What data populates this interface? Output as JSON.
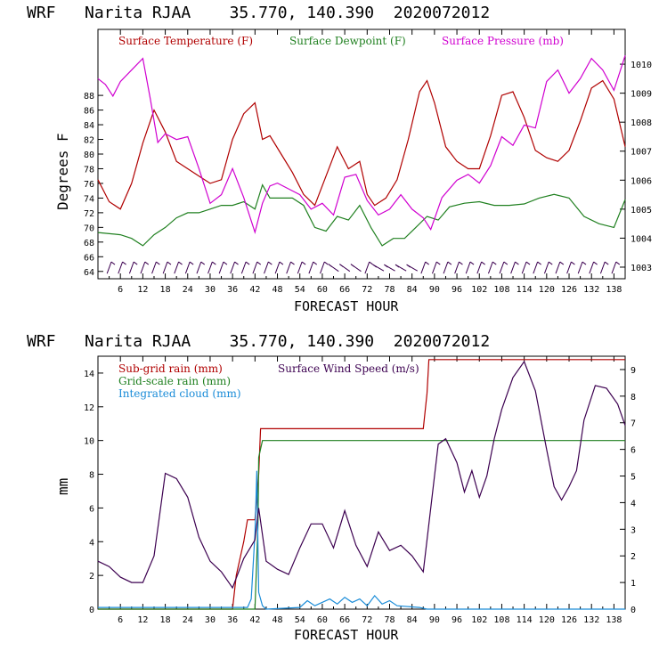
{
  "chart_data": [
    {
      "type": "line",
      "title": "WRF   Narita RJAA    35.770, 140.390  2020072012",
      "xlabel": "FORECAST HOUR",
      "ylabel": "Degrees F",
      "xlim": [
        0,
        141
      ],
      "ylim": [
        63,
        97
      ],
      "y2lim": [
        1002.6,
        1011.2
      ],
      "xticks": [
        "6",
        "12",
        "18",
        "24",
        "30",
        "36",
        "42",
        "48",
        "54",
        "60",
        "66",
        "72",
        "78",
        "84",
        "90",
        "96",
        "102",
        "108",
        "114",
        "120",
        "126",
        "132",
        "138"
      ],
      "yticks": [
        "64",
        "66",
        "68",
        "70",
        "72",
        "74",
        "76",
        "78",
        "80",
        "82",
        "84",
        "86",
        "88"
      ],
      "y2ticks": [
        "1003",
        "1004",
        "1005",
        "1006",
        "1007",
        "1008",
        "1009",
        "1010"
      ],
      "series": [
        {
          "name": "Surface Temperature (F)",
          "color": "#b00000",
          "axis": "left",
          "x": [
            0,
            3,
            6,
            9,
            12,
            15,
            18,
            21,
            24,
            27,
            30,
            33,
            36,
            39,
            42,
            44,
            46,
            49,
            52,
            55,
            58,
            61,
            64,
            67,
            70,
            72,
            74,
            77,
            80,
            83,
            86,
            88,
            90,
            93,
            96,
            99,
            102,
            105,
            108,
            111,
            114,
            117,
            120,
            123,
            126,
            129,
            132,
            135,
            138,
            141
          ],
          "y": [
            76.5,
            73.5,
            72.5,
            76,
            81.5,
            86,
            83,
            79,
            78,
            77,
            76,
            76.5,
            82,
            85.5,
            87,
            82,
            82.5,
            80,
            77.5,
            74.5,
            73,
            77,
            81,
            78,
            79,
            74.5,
            73,
            74,
            76.5,
            82,
            88.5,
            90,
            87,
            81,
            79,
            78,
            78,
            82.5,
            88,
            88.5,
            85,
            80.5,
            79.5,
            79,
            80.5,
            84.5,
            89,
            90,
            87.5,
            81
          ]
        },
        {
          "name": "Surface Dewpoint (F)",
          "color": "#208020",
          "axis": "left",
          "x": [
            0,
            6,
            9,
            12,
            15,
            18,
            21,
            24,
            27,
            30,
            33,
            36,
            39,
            42,
            44,
            46,
            49,
            52,
            55,
            58,
            61,
            64,
            67,
            70,
            73,
            76,
            79,
            82,
            85,
            88,
            91,
            94,
            98,
            102,
            106,
            110,
            114,
            118,
            122,
            126,
            130,
            134,
            138,
            141
          ],
          "y": [
            69.3,
            69,
            68.5,
            67.5,
            69,
            70,
            71.3,
            72,
            72,
            72.5,
            73,
            73,
            73.5,
            72.5,
            75.8,
            74,
            74,
            74,
            73,
            70,
            69.5,
            71.5,
            71,
            73,
            70,
            67.5,
            68.5,
            68.5,
            70,
            71.5,
            71,
            72.8,
            73.3,
            73.5,
            73,
            73,
            73.2,
            74,
            74.5,
            74,
            71.5,
            70.5,
            70,
            73.8
          ]
        },
        {
          "name": "Surface Pressure (mb)",
          "color": "#d000d0",
          "axis": "right",
          "x": [
            0,
            2,
            4,
            6,
            9,
            12,
            14,
            16,
            18,
            21,
            24,
            27,
            30,
            33,
            36,
            39,
            41,
            42,
            44,
            46,
            48,
            51,
            54,
            57,
            60,
            63,
            66,
            69,
            72,
            75,
            78,
            81,
            84,
            87,
            89,
            92,
            96,
            99,
            102,
            105,
            108,
            111,
            114,
            117,
            120,
            123,
            126,
            129,
            132,
            135,
            138,
            141
          ],
          "y": [
            1009.5,
            1009.3,
            1008.9,
            1009.4,
            1009.8,
            1010.2,
            1008.8,
            1007.3,
            1007.6,
            1007.4,
            1007.5,
            1006.4,
            1005.2,
            1005.5,
            1006.4,
            1005.4,
            1004.6,
            1004.2,
            1005.2,
            1005.8,
            1005.9,
            1005.7,
            1005.5,
            1005,
            1005.2,
            1004.8,
            1006.1,
            1006.2,
            1005.3,
            1004.8,
            1005,
            1005.5,
            1005,
            1004.7,
            1004.3,
            1005.4,
            1006,
            1006.2,
            1005.9,
            1006.5,
            1007.5,
            1007.2,
            1007.9,
            1007.8,
            1009.4,
            1009.8,
            1009,
            1009.5,
            1010.2,
            1009.8,
            1009.1,
            1010.3
          ]
        }
      ],
      "wind_barbs": true
    },
    {
      "type": "line",
      "title": "WRF   Narita RJAA    35.770, 140.390  2020072012",
      "xlabel": "FORECAST HOUR",
      "ylabel": "mm",
      "xlim": [
        0,
        141
      ],
      "ylim": [
        0,
        15
      ],
      "y2lim": [
        0,
        9.5
      ],
      "xticks": [
        "6",
        "12",
        "18",
        "24",
        "30",
        "36",
        "42",
        "48",
        "54",
        "60",
        "66",
        "72",
        "78",
        "84",
        "90",
        "96",
        "102",
        "108",
        "114",
        "120",
        "126",
        "132",
        "138"
      ],
      "yticks": [
        "0",
        "2",
        "4",
        "6",
        "8",
        "10",
        "12",
        "14"
      ],
      "y2ticks": [
        "0",
        "1",
        "2",
        "3",
        "4",
        "5",
        "6",
        "7",
        "8",
        "9"
      ],
      "legend_left": [
        "Sub-grid rain (mm)",
        "Grid-scale rain (mm)",
        "Integrated cloud (mm)"
      ],
      "legend_right": "Surface Wind Speed (m/s)",
      "series": [
        {
          "name": "Sub-grid rain (mm)",
          "color": "#b00000",
          "axis": "left",
          "x": [
            0,
            36,
            37,
            39,
            40,
            42,
            43,
            43.5,
            87,
            88,
            88.5,
            141
          ],
          "y": [
            0,
            0,
            2,
            4,
            5.3,
            5.3,
            8,
            10.7,
            10.7,
            12.8,
            14.8,
            14.8
          ]
        },
        {
          "name": "Grid-scale rain (mm)",
          "color": "#208020",
          "axis": "left",
          "x": [
            0,
            42,
            42.8,
            43,
            44,
            141
          ],
          "y": [
            0,
            0,
            5,
            9,
            10,
            10
          ]
        },
        {
          "name": "Integrated cloud (mm)",
          "color": "#1a8cd8",
          "axis": "left",
          "x": [
            0,
            40,
            41,
            42,
            42.5,
            43,
            44,
            45,
            54,
            56,
            58,
            62,
            64,
            66,
            68,
            70,
            72,
            74,
            76,
            78,
            80,
            86,
            88,
            141
          ],
          "y": [
            0.1,
            0.1,
            0.6,
            4.5,
            8.2,
            1,
            0.2,
            0,
            0.1,
            0.5,
            0.2,
            0.6,
            0.3,
            0.7,
            0.4,
            0.6,
            0.2,
            0.8,
            0.3,
            0.5,
            0.2,
            0.1,
            0,
            0
          ]
        },
        {
          "name": "Surface Wind Speed (m/s)",
          "color": "#3c0050",
          "axis": "right",
          "x": [
            0,
            3,
            6,
            9,
            12,
            15,
            18,
            21,
            24,
            27,
            30,
            33,
            36,
            39,
            42,
            43,
            45,
            48,
            51,
            54,
            57,
            60,
            63,
            66,
            69,
            72,
            75,
            78,
            81,
            84,
            87,
            89,
            91,
            93,
            96,
            98,
            100,
            102,
            104,
            106,
            108,
            111,
            114,
            117,
            120,
            122,
            124,
            126,
            128,
            130,
            133,
            136,
            139,
            141
          ],
          "y": [
            1.8,
            1.6,
            1.2,
            1,
            1,
            2,
            5.1,
            4.9,
            4.2,
            2.7,
            1.8,
            1.4,
            0.8,
            1.9,
            2.6,
            3.8,
            1.8,
            1.5,
            1.3,
            2.3,
            3.2,
            3.2,
            2.3,
            3.7,
            2.4,
            1.6,
            2.9,
            2.2,
            2.4,
            2,
            1.4,
            3.8,
            6.2,
            6.4,
            5.5,
            4.4,
            5.2,
            4.2,
            5,
            6.4,
            7.5,
            8.7,
            9.3,
            8.2,
            6,
            4.6,
            4.1,
            4.6,
            5.2,
            7.1,
            8.4,
            8.3,
            7.7,
            6.9
          ]
        }
      ]
    }
  ]
}
